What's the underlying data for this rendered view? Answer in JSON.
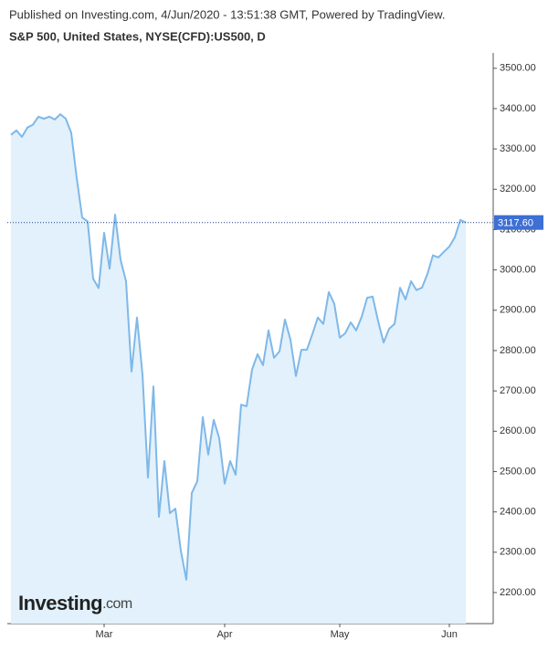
{
  "header": {
    "published": "Published on Investing.com, 4/Jun/2020 - 13:51:38 GMT, Powered by TradingView.",
    "title": "S&P 500, United States, NYSE(CFD):US500, D"
  },
  "logo": {
    "brand": "Investing",
    "suffix": ".com"
  },
  "chart_data": {
    "type": "area",
    "categories": [
      null,
      null,
      null,
      null,
      null,
      null,
      null,
      null,
      null,
      null,
      null,
      null,
      null,
      null,
      null,
      null,
      null,
      "Mar",
      null,
      null,
      null,
      null,
      null,
      null,
      null,
      null,
      null,
      null,
      null,
      null,
      null,
      null,
      null,
      null,
      null,
      null,
      null,
      null,
      null,
      "Apr",
      null,
      null,
      null,
      null,
      null,
      null,
      null,
      null,
      null,
      null,
      null,
      null,
      null,
      null,
      null,
      null,
      null,
      null,
      null,
      null,
      "May",
      null,
      null,
      null,
      null,
      null,
      null,
      null,
      null,
      null,
      null,
      null,
      null,
      null,
      null,
      null,
      null,
      null,
      null,
      null,
      "Jun",
      null,
      null,
      null
    ],
    "series": [
      {
        "color": "#7fb8e8",
        "values": [
          3335,
          3346,
          3330,
          3353,
          3360,
          3380,
          3375,
          3380,
          3373,
          3386,
          3375,
          3340,
          3228,
          3130,
          3120,
          2978,
          2955,
          3092,
          3003,
          3137,
          3025,
          2972,
          2748,
          2882,
          2741,
          2485,
          2711,
          2388,
          2526,
          2397,
          2408,
          2304,
          2232,
          2447,
          2476,
          2635,
          2542,
          2628,
          2583,
          2470,
          2526,
          2492,
          2666,
          2662,
          2753,
          2791,
          2764,
          2850,
          2782,
          2798,
          2877,
          2827,
          2737,
          2802,
          2802,
          2841,
          2882,
          2866,
          2945,
          2916,
          2832,
          2843,
          2870,
          2850,
          2884,
          2931,
          2934,
          2873,
          2820,
          2854,
          2866,
          2956,
          2927,
          2972,
          2950,
          2956,
          2990,
          3036,
          3031,
          3045,
          3058,
          3081,
          3124,
          3117.6
        ]
      }
    ],
    "ylim": [
      2123,
      3538
    ],
    "yticks": [
      {
        "value": 2200,
        "label": "2200.00"
      },
      {
        "value": 2300,
        "label": "2300.00"
      },
      {
        "value": 2400,
        "label": "2400.00"
      },
      {
        "value": 2500,
        "label": "2500.00"
      },
      {
        "value": 2600,
        "label": "2600.00"
      },
      {
        "value": 2700,
        "label": "2700.00"
      },
      {
        "value": 2800,
        "label": "2800.00"
      },
      {
        "value": 2900,
        "label": "2900.00"
      },
      {
        "value": 3000,
        "label": "3000.00"
      },
      {
        "value": 3100,
        "label": "3100.00"
      },
      {
        "value": 3200,
        "label": "3200.00"
      },
      {
        "value": 3300,
        "label": "3300.00"
      },
      {
        "value": 3400,
        "label": "3400.00"
      },
      {
        "value": 3500,
        "label": "3500.00"
      }
    ],
    "price_line": {
      "value": 3117.6,
      "label": "3117.60"
    },
    "fill_color": "#e2f1fb"
  }
}
